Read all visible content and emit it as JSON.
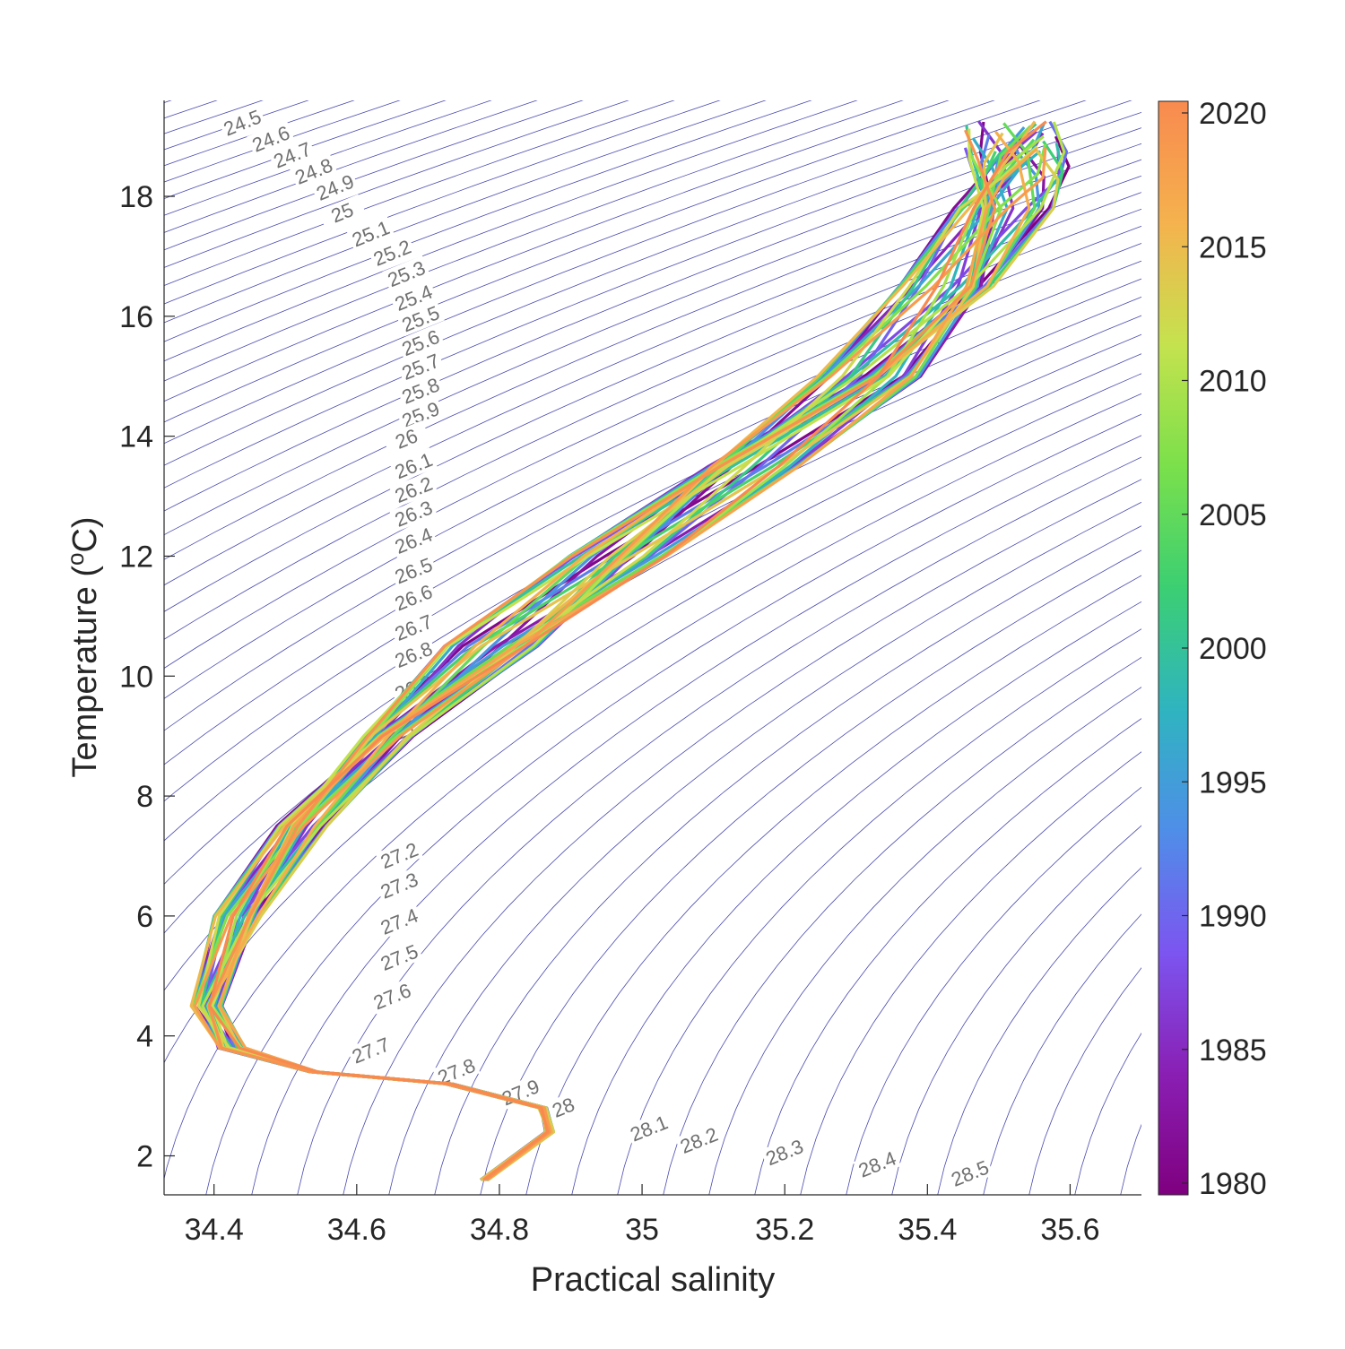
{
  "chart_data": {
    "type": "line",
    "xlabel": "Practical salinity",
    "ylabel": "Temperature (",
    "ylabel_sup": "o",
    "ylabel_tail": "C)",
    "xlim": [
      34.33,
      35.7
    ],
    "ylim": [
      1.35,
      19.6
    ],
    "x_ticks": [
      34.4,
      34.6,
      34.8,
      35,
      35.2,
      35.4,
      35.6
    ],
    "x_tick_labels": [
      "34.4",
      "34.6",
      "34.8",
      "35",
      "35.2",
      "35.4",
      "35.6"
    ],
    "y_ticks": [
      2,
      4,
      6,
      8,
      10,
      12,
      14,
      16,
      18
    ],
    "y_tick_labels": [
      "2",
      "4",
      "6",
      "8",
      "10",
      "12",
      "14",
      "16",
      "18"
    ],
    "grid": false,
    "isopycnal_color": "#4a4ab0",
    "isopycnal_label_color": "#707070",
    "isopycnal_labels": [
      "24.5",
      "24.6",
      "24.7",
      "24.8",
      "24.9",
      "25",
      "25.1",
      "25.2",
      "25.3",
      "25.4",
      "25.5",
      "25.6",
      "25.7",
      "25.8",
      "25.9",
      "26",
      "26.1",
      "26.2",
      "26.3",
      "26.4",
      "26.5",
      "26.6",
      "26.7",
      "26.8",
      "26.9",
      "27",
      "27.2",
      "27.3",
      "27.4",
      "27.5",
      "27.6",
      "27.7",
      "27.8",
      "27.9",
      "28",
      "28.1",
      "28.2",
      "28.3",
      "28.4",
      "28.5"
    ],
    "isopycnal_label_positions": [
      [
        34.44,
        19.22
      ],
      [
        34.48,
        18.95
      ],
      [
        34.51,
        18.68
      ],
      [
        34.54,
        18.41
      ],
      [
        34.57,
        18.14
      ],
      [
        34.58,
        17.72
      ],
      [
        34.62,
        17.37
      ],
      [
        34.65,
        17.05
      ],
      [
        34.67,
        16.7
      ],
      [
        34.68,
        16.3
      ],
      [
        34.69,
        15.95
      ],
      [
        34.69,
        15.55
      ],
      [
        34.69,
        15.15
      ],
      [
        34.69,
        14.75
      ],
      [
        34.69,
        14.35
      ],
      [
        34.67,
        13.95
      ],
      [
        34.68,
        13.5
      ],
      [
        34.68,
        13.1
      ],
      [
        34.68,
        12.7
      ],
      [
        34.68,
        12.25
      ],
      [
        34.68,
        11.75
      ],
      [
        34.68,
        11.3
      ],
      [
        34.68,
        10.8
      ],
      [
        34.68,
        10.35
      ],
      [
        34.68,
        9.8
      ],
      [
        34.67,
        9.1
      ],
      [
        34.66,
        7.0
      ],
      [
        34.66,
        6.5
      ],
      [
        34.66,
        5.9
      ],
      [
        34.66,
        5.3
      ],
      [
        34.65,
        4.65
      ],
      [
        34.62,
        3.75
      ],
      [
        34.74,
        3.4
      ],
      [
        34.83,
        3.05
      ],
      [
        34.89,
        2.8
      ],
      [
        35.01,
        2.45
      ],
      [
        35.08,
        2.25
      ],
      [
        35.2,
        2.05
      ],
      [
        35.33,
        1.85
      ],
      [
        35.46,
        1.7
      ]
    ],
    "series_profile_T": [
      1.6,
      2.4,
      2.8,
      3.2,
      3.4,
      3.8,
      4.5,
      6.0,
      7.5,
      9.0,
      10.5,
      12.0,
      13.5,
      15.0,
      16.5,
      17.8,
      18.5,
      19.0
    ],
    "base_profile_S": [
      34.78,
      34.87,
      34.86,
      34.73,
      34.54,
      34.42,
      34.39,
      34.44,
      34.52,
      34.64,
      34.8,
      34.97,
      35.14,
      35.32,
      35.44,
      35.5,
      35.52,
      35.53
    ],
    "colorbar": {
      "min": 1980,
      "max": 2020,
      "ticks": [
        1980,
        1985,
        1990,
        1995,
        2000,
        2005,
        2010,
        2015,
        2020
      ],
      "tick_labels": [
        "1980",
        "1985",
        "1990",
        "1995",
        "2000",
        "2005",
        "2010",
        "2015",
        "2020"
      ],
      "colormap": [
        "#7f007f",
        "#8a1fb4",
        "#7c55f0",
        "#4f8ee8",
        "#2fb4c0",
        "#3ccf72",
        "#7be04b",
        "#c5e24e",
        "#f5b24e",
        "#f88a4f"
      ]
    },
    "series_years": [
      1980,
      1981,
      1982,
      1983,
      1984,
      1985,
      1986,
      1987,
      1988,
      1989,
      1990,
      1991,
      1992,
      1993,
      1994,
      1995,
      1996,
      1997,
      1998,
      1999,
      2000,
      2001,
      2002,
      2003,
      2004,
      2005,
      2006,
      2007,
      2008,
      2009,
      2010,
      2011,
      2012,
      2013,
      2014,
      2015,
      2016,
      2017,
      2018,
      2019,
      2020
    ]
  }
}
